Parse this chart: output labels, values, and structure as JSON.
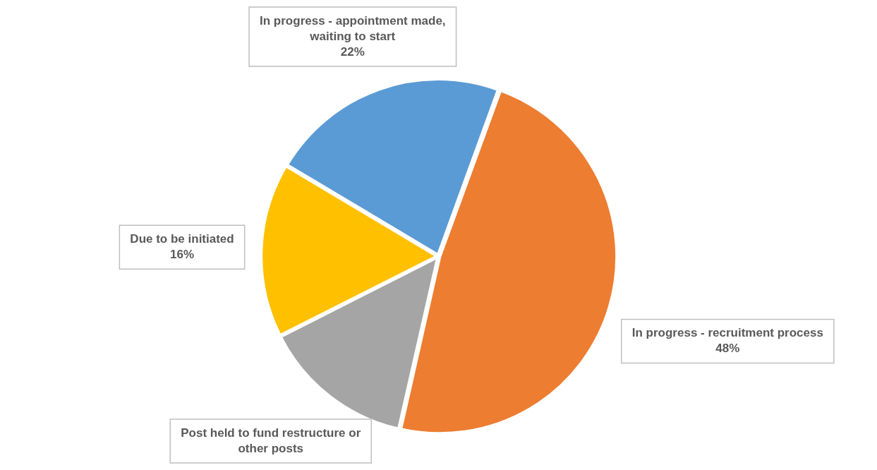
{
  "chart_data": {
    "type": "pie",
    "categories": [
      "In progress - recruitment process",
      "Post held to fund restructure or other posts",
      "Due to be initiated",
      "In progress - appointment made, waiting to start"
    ],
    "values": [
      48,
      14,
      16,
      22
    ],
    "colors": [
      "#ed7d31",
      "#a5a5a5",
      "#ffc000",
      "#5b9bd5"
    ],
    "value_labels": [
      "48%",
      null,
      "16%",
      "22%"
    ],
    "legend": false
  }
}
